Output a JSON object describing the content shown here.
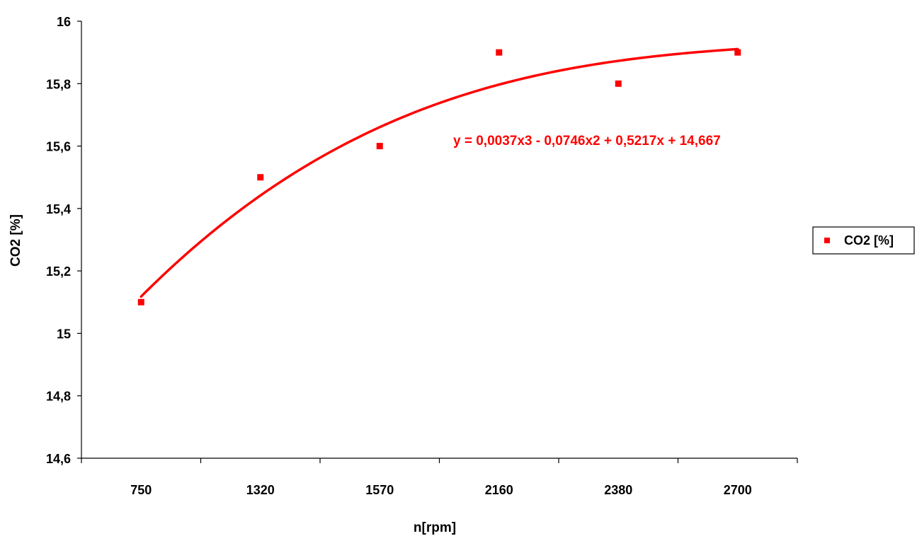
{
  "chart_data": {
    "type": "scatter",
    "categories": [
      "750",
      "1320",
      "1570",
      "2160",
      "2380",
      "2700"
    ],
    "series": [
      {
        "name": "CO2 [%]",
        "values": [
          15.1,
          15.5,
          15.6,
          15.9,
          15.8,
          15.9
        ]
      }
    ],
    "trendline": {
      "type": "polynomial",
      "order": 3,
      "coefficients": [
        0.0037,
        -0.0746,
        0.5217,
        14.667
      ],
      "label": "y = 0,0037x3 - 0,0746x2 + 0,5217x + 14,667"
    },
    "xlabel": "n[rpm]",
    "ylabel": "CO2 [%]",
    "ylim": [
      14.6,
      16
    ],
    "ytick_labels": [
      "14,6",
      "14,8",
      "15",
      "15,2",
      "15,4",
      "15,6",
      "15,8",
      "16"
    ],
    "grid": false,
    "legend": "right",
    "colors": {
      "series": "#ff0000",
      "axis": "#000000"
    }
  }
}
